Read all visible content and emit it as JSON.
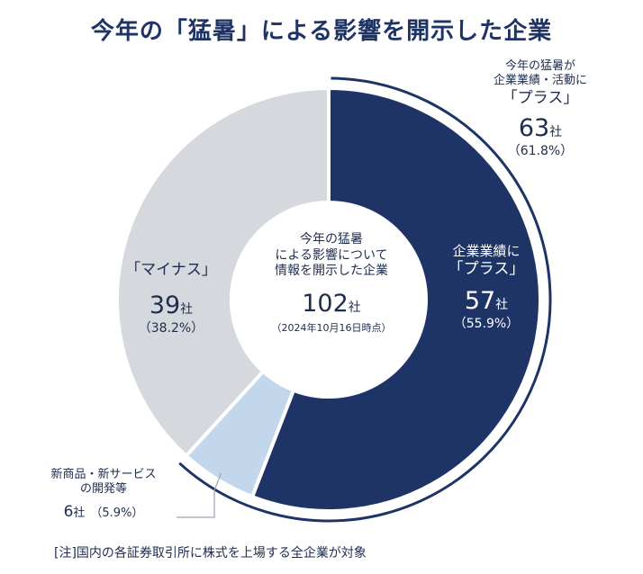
{
  "title": "今年の「猛暑」による影響を開示した企業",
  "footnote": "[注]国内の各証券取引所に株式を上場する全企業が対象",
  "center": {
    "line1": "今年の猛暑",
    "line2": "による影響について",
    "line3": "情報を開示した企業",
    "total": "102",
    "total_unit": "社",
    "date": "（2024年10月16日時点）"
  },
  "plus_total": {
    "line1": "今年の猛暑が",
    "line2": "企業業績・活動に",
    "line3": "「プラス」",
    "count": "63",
    "unit": "社",
    "pct": "（61.8%）"
  },
  "plus": {
    "line1": "企業業績に",
    "line2": "「プラス」",
    "count": "57",
    "unit": "社",
    "pct": "（55.9%）"
  },
  "minus": {
    "line1": "「マイナス」",
    "count": "39",
    "unit": "社",
    "pct": "（38.2%）"
  },
  "new_products": {
    "line1": "新商品・新サービス",
    "line2": "の開発等",
    "count": "6",
    "unit": "社",
    "pct": "（5.9%）"
  },
  "colors": {
    "plus": "#1f3466",
    "new_products": "#c2d7ec",
    "minus": "#d5d9de",
    "title": "#1f3466"
  },
  "chart_data": {
    "type": "pie",
    "donut": true,
    "total": 102,
    "slices": [
      {
        "label": "企業業績に「プラス」",
        "value": 57,
        "percent": 55.9
      },
      {
        "label": "新商品・新サービスの開発等",
        "value": 6,
        "percent": 5.9
      },
      {
        "label": "「マイナス」",
        "value": 39,
        "percent": 38.2
      }
    ],
    "bracket": {
      "label": "今年の猛暑が企業業績・活動に「プラス」",
      "value": 63,
      "percent": 61.8
    }
  }
}
